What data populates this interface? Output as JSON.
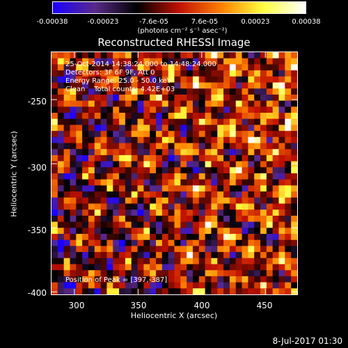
{
  "colorbar": {
    "ticks": [
      "-0.00038",
      "-0.00023",
      "-7.6e-05",
      "7.6e-05",
      "0.00023",
      "0.00038"
    ],
    "units": "(photons cm⁻² s⁻¹ asec⁻²)",
    "colors": [
      "#1a00ff",
      "#5a2a8a",
      "#000000",
      "#c01000",
      "#ff8000",
      "#ffff40",
      "#ffffff"
    ]
  },
  "chart_data": {
    "type": "heatmap",
    "title": "Reconstructed RHESSI Image",
    "xlabel": "Heliocentric X (arcsec)",
    "ylabel": "Heliocentric Y (arcsec)",
    "xlim": [
      282,
      475
    ],
    "ylim": [
      -402,
      -213
    ],
    "xticks": [
      "300",
      "350",
      "400",
      "450"
    ],
    "xtick_values": [
      300,
      350,
      400,
      450
    ],
    "yticks": [
      "-250",
      "-300",
      "-350",
      "-400"
    ],
    "ytick_values": [
      -250,
      -300,
      -350,
      -400
    ],
    "value_range": [
      -0.00038,
      0.00038
    ],
    "grid": {
      "nx": 40,
      "ny": 40
    },
    "peak": [
      397,
      -387
    ],
    "annotations": [
      "25-Oct-2014 14:38:24.000 to 14:48:24.000",
      "Detectors: 3F 6F 9F, Att 0",
      "Energy Range: 25.0 - 50.0 keV",
      "Clean    Total counts: 4.42E+03"
    ],
    "peak_label": "Position of Peak = [397,-387]"
  },
  "footer": {
    "date": "8-Jul-2017 01:30"
  }
}
